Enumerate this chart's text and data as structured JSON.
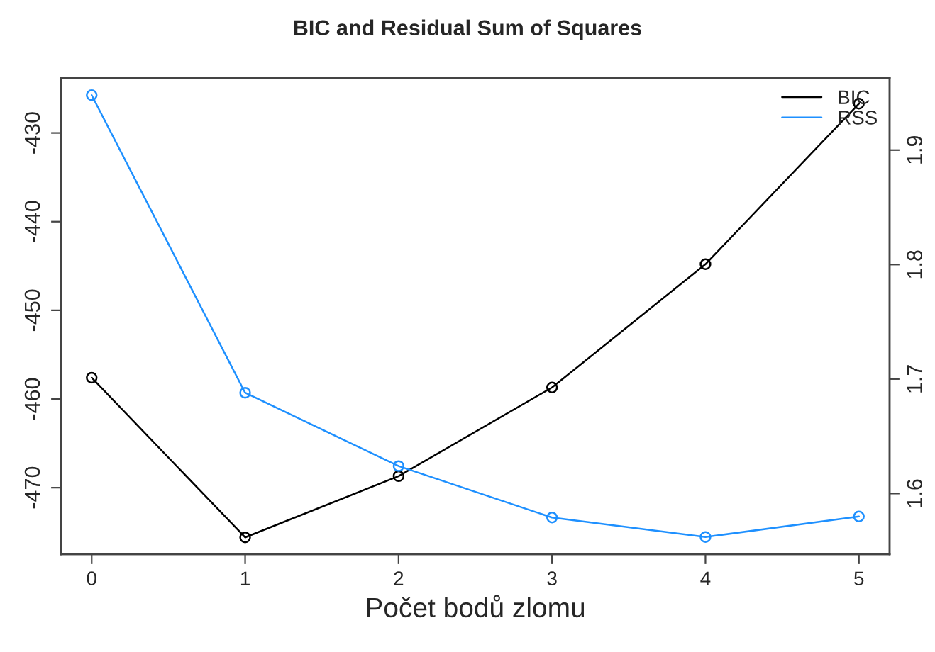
{
  "chart_data": {
    "type": "line",
    "title": "BIC and Residual Sum of Squares",
    "xlabel": "Počet bodů zlomu",
    "x": [
      0,
      1,
      2,
      3,
      4,
      5
    ],
    "series": [
      {
        "name": "BIC",
        "color": "#000000",
        "values": [
          -457.6,
          -475.6,
          -468.7,
          -458.7,
          -444.8,
          -426.7
        ]
      },
      {
        "name": "RSS",
        "color": "#1e90ff",
        "axis": "y2",
        "values": [
          1.948,
          1.688,
          1.624,
          1.579,
          1.562,
          1.58
        ]
      }
    ],
    "xlim": [
      -0.2,
      5.2
    ],
    "xticks": [
      0,
      1,
      2,
      3,
      4,
      5
    ],
    "ylim": [
      -477.5,
      -423.8
    ],
    "yticks": [
      -430,
      -440,
      -450,
      -460,
      -470
    ],
    "y2lim": [
      1.547,
      1.963
    ],
    "y2ticks": [
      1.6,
      1.7,
      1.8,
      1.9
    ],
    "marker": "circle",
    "line_style": "solid",
    "grid": false,
    "legend": "top right"
  }
}
